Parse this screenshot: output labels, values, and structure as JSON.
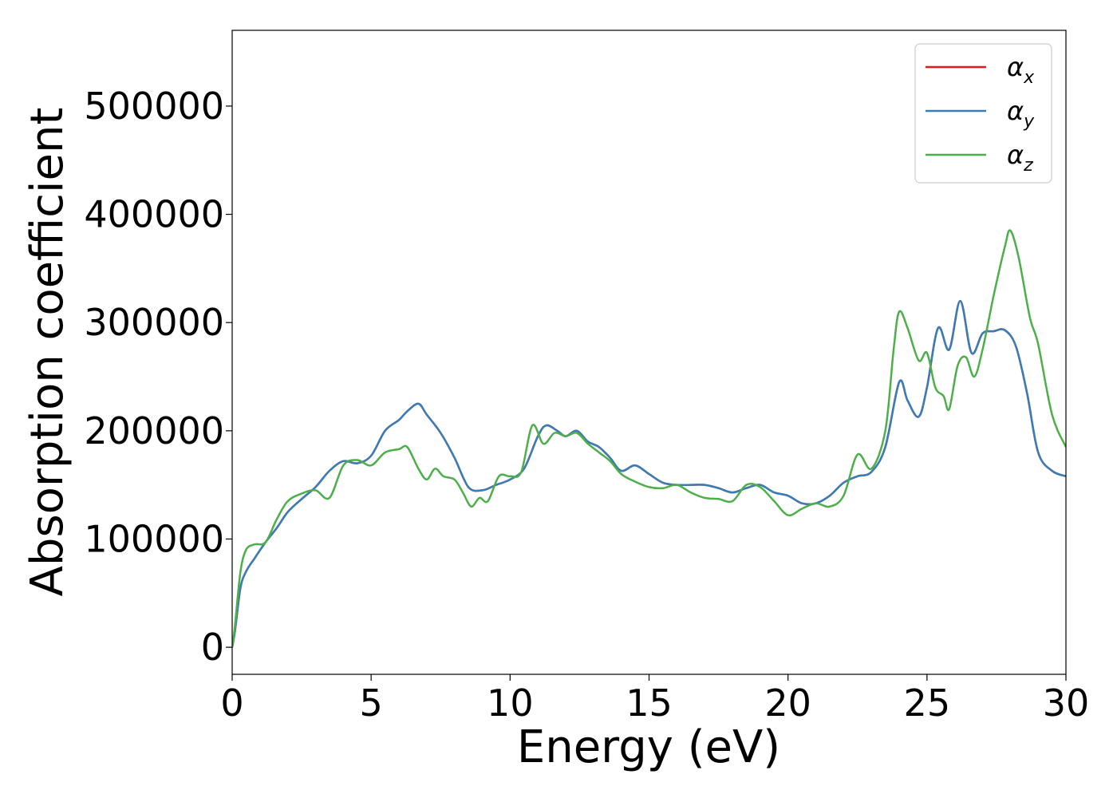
{
  "chart_data": {
    "type": "line",
    "title": "",
    "xlabel": "Energy (eV)",
    "ylabel": "Absorption coefficient",
    "xlim": [
      0,
      30
    ],
    "ylim": [
      -25000,
      570000
    ],
    "xticks": [
      0,
      5,
      10,
      15,
      20,
      25,
      30
    ],
    "yticks": [
      0,
      100000,
      200000,
      300000,
      400000,
      500000
    ],
    "xtick_labels": [
      "0",
      "5",
      "10",
      "15",
      "20",
      "25",
      "30"
    ],
    "ytick_labels": [
      "0",
      "100000",
      "200000",
      "300000",
      "400000",
      "500000"
    ],
    "grid": false,
    "legend_position": "top-right",
    "series": [
      {
        "legend_base": "α",
        "legend_sub": "x",
        "color": "#e41a1c",
        "x": [
          0,
          0.1,
          0.3,
          0.5,
          0.8,
          1.2,
          1.6,
          2.0,
          2.5,
          3.0,
          3.5,
          4.0,
          4.5,
          5.0,
          5.5,
          6.0,
          6.3,
          6.7,
          7.0,
          7.5,
          8.0,
          8.5,
          9.0,
          9.5,
          10.0,
          10.5,
          11.0,
          11.3,
          11.7,
          12.0,
          12.4,
          12.8,
          13.2,
          13.6,
          14.0,
          14.5,
          15.0,
          15.5,
          16.0,
          16.5,
          17.0,
          17.5,
          18.0,
          18.5,
          19.0,
          19.5,
          20.0,
          20.5,
          21.0,
          21.5,
          22.0,
          22.5,
          23.0,
          23.5,
          24.0,
          24.3,
          24.7,
          25.0,
          25.4,
          25.8,
          26.2,
          26.6,
          27.0,
          27.4,
          27.8,
          28.2,
          28.6,
          29.0,
          29.5,
          30.0
        ],
        "values": [
          0,
          15000,
          55000,
          70000,
          82000,
          97000,
          110000,
          125000,
          137000,
          148000,
          163000,
          172000,
          170000,
          177000,
          200000,
          210000,
          218000,
          225000,
          215000,
          198000,
          175000,
          148000,
          145000,
          150000,
          155000,
          165000,
          195000,
          205000,
          200000,
          195000,
          200000,
          190000,
          185000,
          175000,
          163000,
          168000,
          160000,
          152000,
          150000,
          150000,
          150000,
          147000,
          143000,
          147000,
          150000,
          143000,
          140000,
          133000,
          133000,
          140000,
          152000,
          158000,
          162000,
          185000,
          245000,
          228000,
          213000,
          240000,
          295000,
          275000,
          320000,
          272000,
          290000,
          292000,
          293000,
          278000,
          235000,
          180000,
          163000,
          158000
        ]
      },
      {
        "legend_base": "α",
        "legend_sub": "y",
        "color": "#377eb8",
        "x": [
          0,
          0.1,
          0.3,
          0.5,
          0.8,
          1.2,
          1.6,
          2.0,
          2.5,
          3.0,
          3.5,
          4.0,
          4.5,
          5.0,
          5.5,
          6.0,
          6.3,
          6.7,
          7.0,
          7.5,
          8.0,
          8.5,
          9.0,
          9.5,
          10.0,
          10.5,
          11.0,
          11.3,
          11.7,
          12.0,
          12.4,
          12.8,
          13.2,
          13.6,
          14.0,
          14.5,
          15.0,
          15.5,
          16.0,
          16.5,
          17.0,
          17.5,
          18.0,
          18.5,
          19.0,
          19.5,
          20.0,
          20.5,
          21.0,
          21.5,
          22.0,
          22.5,
          23.0,
          23.5,
          24.0,
          24.3,
          24.7,
          25.0,
          25.4,
          25.8,
          26.2,
          26.6,
          27.0,
          27.4,
          27.8,
          28.2,
          28.6,
          29.0,
          29.5,
          30.0
        ],
        "values": [
          0,
          15000,
          55000,
          70000,
          82000,
          97000,
          110000,
          125000,
          137000,
          148000,
          163000,
          172000,
          170000,
          177000,
          200000,
          210000,
          218000,
          225000,
          215000,
          198000,
          175000,
          148000,
          145000,
          150000,
          155000,
          165000,
          195000,
          205000,
          200000,
          195000,
          200000,
          190000,
          185000,
          175000,
          163000,
          168000,
          160000,
          152000,
          150000,
          150000,
          150000,
          147000,
          143000,
          147000,
          150000,
          143000,
          140000,
          133000,
          133000,
          140000,
          152000,
          158000,
          162000,
          185000,
          245000,
          228000,
          213000,
          240000,
          295000,
          275000,
          320000,
          272000,
          290000,
          292000,
          293000,
          278000,
          235000,
          180000,
          163000,
          158000
        ]
      },
      {
        "legend_base": "α",
        "legend_sub": "z",
        "color": "#4daf4a",
        "x": [
          0,
          0.1,
          0.3,
          0.5,
          0.8,
          1.2,
          1.6,
          2.0,
          2.5,
          3.0,
          3.5,
          4.0,
          4.5,
          5.0,
          5.5,
          6.0,
          6.3,
          6.7,
          7.0,
          7.3,
          7.6,
          8.0,
          8.3,
          8.6,
          8.9,
          9.2,
          9.6,
          10.0,
          10.4,
          10.8,
          11.2,
          11.6,
          12.0,
          12.4,
          12.8,
          13.2,
          13.6,
          14.0,
          14.5,
          15.0,
          15.5,
          16.0,
          16.5,
          17.0,
          17.5,
          18.0,
          18.5,
          19.0,
          19.5,
          20.0,
          20.5,
          21.0,
          21.5,
          22.0,
          22.5,
          23.0,
          23.5,
          23.8,
          24.0,
          24.3,
          24.7,
          25.0,
          25.3,
          25.6,
          25.8,
          26.1,
          26.4,
          26.7,
          27.0,
          27.4,
          27.8,
          28.0,
          28.3,
          28.7,
          29.0,
          29.5,
          30.0
        ],
        "values": [
          0,
          20000,
          70000,
          90000,
          95000,
          97000,
          118000,
          135000,
          142000,
          145000,
          138000,
          168000,
          173000,
          168000,
          180000,
          183000,
          185000,
          165000,
          155000,
          165000,
          158000,
          155000,
          143000,
          130000,
          138000,
          135000,
          158000,
          158000,
          162000,
          205000,
          188000,
          198000,
          195000,
          198000,
          188000,
          180000,
          172000,
          160000,
          153000,
          148000,
          147000,
          150000,
          143000,
          138000,
          137000,
          135000,
          150000,
          148000,
          135000,
          122000,
          128000,
          133000,
          130000,
          140000,
          178000,
          165000,
          200000,
          275000,
          310000,
          295000,
          265000,
          272000,
          240000,
          232000,
          220000,
          260000,
          268000,
          250000,
          275000,
          325000,
          370000,
          385000,
          360000,
          305000,
          280000,
          215000,
          185000
        ]
      }
    ]
  }
}
